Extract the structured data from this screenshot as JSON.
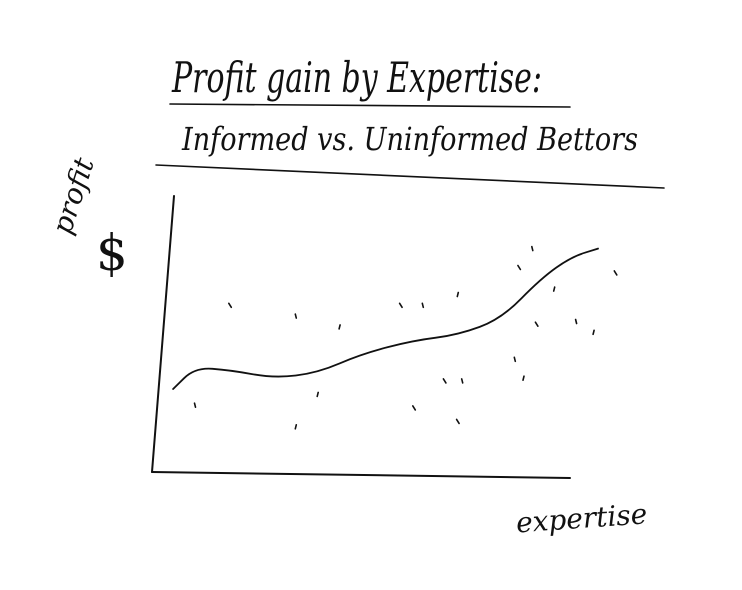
{
  "chart_data": {
    "type": "scatter",
    "title": "Profit gain by Expertise:",
    "subtitle": "Informed vs. Uninformed Bettors",
    "ylabel": "profit",
    "ylabel_unit": "$",
    "xlabel": "expertise",
    "grid": false,
    "legend": "none",
    "trend_line": [
      {
        "x": 0.03,
        "y": 0.3
      },
      {
        "x": 0.08,
        "y": 0.38
      },
      {
        "x": 0.16,
        "y": 0.37
      },
      {
        "x": 0.26,
        "y": 0.34
      },
      {
        "x": 0.36,
        "y": 0.36
      },
      {
        "x": 0.46,
        "y": 0.43
      },
      {
        "x": 0.58,
        "y": 0.48
      },
      {
        "x": 0.68,
        "y": 0.5
      },
      {
        "x": 0.78,
        "y": 0.56
      },
      {
        "x": 0.87,
        "y": 0.71
      },
      {
        "x": 0.94,
        "y": 0.79
      },
      {
        "x": 1.0,
        "y": 0.82
      }
    ],
    "points": [
      {
        "x": 0.16,
        "y": 0.61
      },
      {
        "x": 0.31,
        "y": 0.57
      },
      {
        "x": 0.41,
        "y": 0.53
      },
      {
        "x": 0.55,
        "y": 0.61
      },
      {
        "x": 0.6,
        "y": 0.61
      },
      {
        "x": 0.68,
        "y": 0.65
      },
      {
        "x": 0.82,
        "y": 0.75
      },
      {
        "x": 0.85,
        "y": 0.82
      },
      {
        "x": 0.9,
        "y": 0.67
      },
      {
        "x": 0.86,
        "y": 0.54
      },
      {
        "x": 0.95,
        "y": 0.55
      },
      {
        "x": 0.99,
        "y": 0.51
      },
      {
        "x": 1.04,
        "y": 0.73
      },
      {
        "x": 0.81,
        "y": 0.41
      },
      {
        "x": 0.83,
        "y": 0.34
      },
      {
        "x": 0.65,
        "y": 0.33
      },
      {
        "x": 0.69,
        "y": 0.33
      },
      {
        "x": 0.36,
        "y": 0.28
      },
      {
        "x": 0.58,
        "y": 0.23
      },
      {
        "x": 0.08,
        "y": 0.24
      },
      {
        "x": 0.31,
        "y": 0.16
      },
      {
        "x": 0.68,
        "y": 0.18
      }
    ]
  }
}
